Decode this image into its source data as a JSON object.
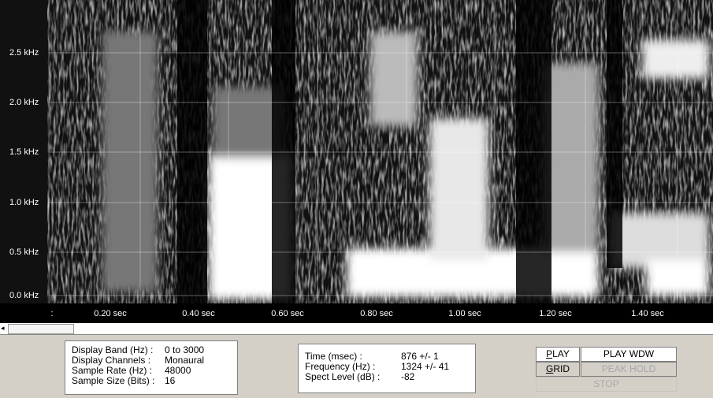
{
  "spectrogram": {
    "y_labels": [
      "2.5 kHz",
      "2.0 kHz",
      "1.5 kHz",
      "1.0 kHz",
      "0.5 kHz",
      "0.0 kHz"
    ],
    "x_labels": [
      ":",
      "0.20 sec",
      "0.40 sec",
      "0.60 sec",
      "0.80 sec",
      "1.00 sec",
      "1.20 sec",
      "1.40 sec"
    ]
  },
  "settings_panel": {
    "rows": [
      [
        "Display Band (Hz) :",
        "0 to 3000"
      ],
      [
        "Display Channels :",
        "Monaural"
      ],
      [
        "Sample Rate (Hz) :",
        "48000"
      ],
      [
        "Sample Size (Bits) :",
        "16"
      ]
    ]
  },
  "cursor_panel": {
    "rows": [
      [
        "Time (msec) :",
        "876  +/- 1"
      ],
      [
        "Frequency (Hz) :",
        "1324 +/- 41"
      ],
      [
        "Spect Level (dB) :",
        "-82"
      ]
    ]
  },
  "buttons": {
    "play": "PLAY",
    "play_window": "PLAY WDW",
    "grid": "GRID",
    "peak_hold": "PEAK HOLD",
    "stop": "STOP"
  }
}
